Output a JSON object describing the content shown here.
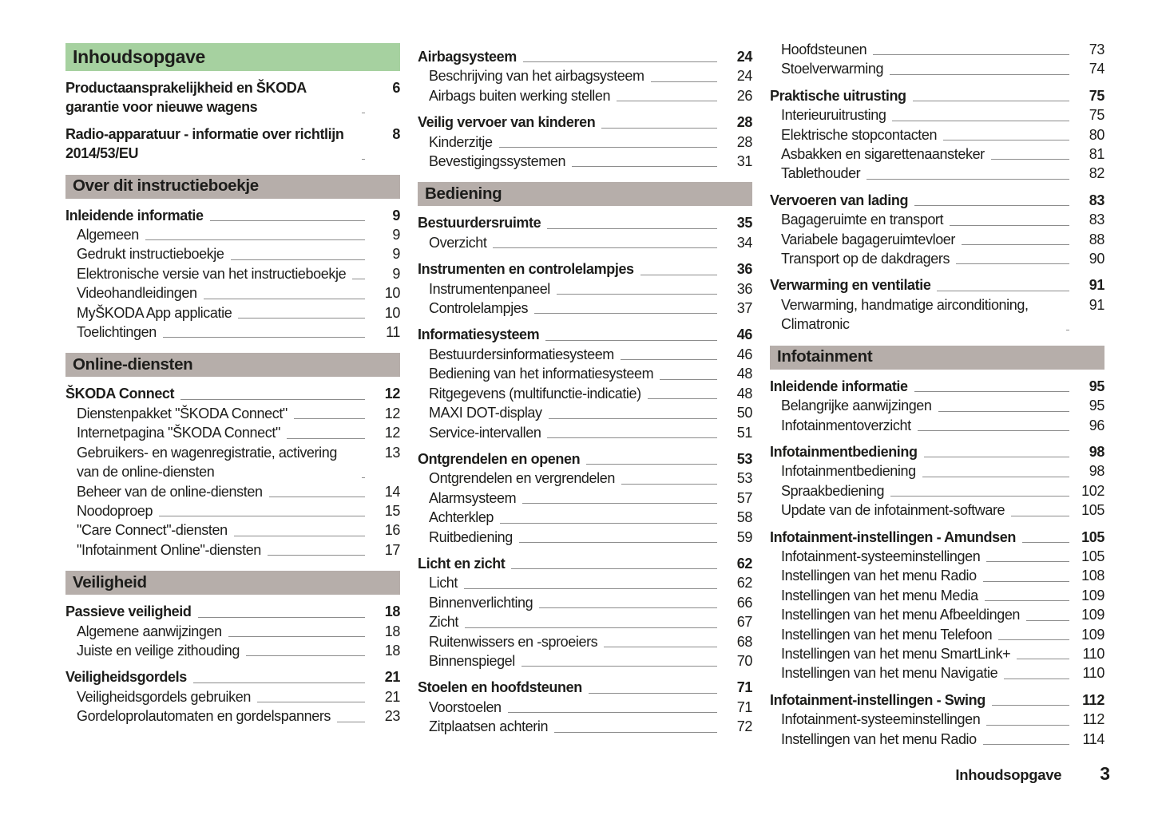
{
  "title": "Inhoudsopgave",
  "footer": {
    "label": "Inhoudsopgave",
    "page_number": "3"
  },
  "colors": {
    "banner_green": "#a6d1a0",
    "section_bar_gray": "#b6aeaa",
    "text": "#1d1d1b",
    "leader_line": "#8c8c8c"
  },
  "columns": [
    {
      "blocks": [
        {
          "type": "banner",
          "text": "Inhoudsopgave"
        },
        {
          "type": "entry",
          "level": 1,
          "text": "Productaansprakelijkheid en ŠKODA garantie voor nieuwe wagens",
          "page": "6"
        },
        {
          "type": "entry",
          "level": 1,
          "text": "Radio-apparatuur - informatie over richtlijn 2014/53/EU",
          "page": "8"
        },
        {
          "type": "section",
          "text": "Over dit instructieboekje"
        },
        {
          "type": "entry",
          "level": 1,
          "text": "Inleidende informatie",
          "page": "9"
        },
        {
          "type": "entry",
          "level": 2,
          "text": "Algemeen",
          "page": "9"
        },
        {
          "type": "entry",
          "level": 2,
          "text": "Gedrukt instructieboekje",
          "page": "9"
        },
        {
          "type": "entry",
          "level": 2,
          "text": "Elektronische versie van het instructieboekje",
          "page": "9"
        },
        {
          "type": "entry",
          "level": 2,
          "text": "Videohandleidingen",
          "page": "10"
        },
        {
          "type": "entry",
          "level": 2,
          "text": "MyŠKODA App applicatie",
          "page": "10"
        },
        {
          "type": "entry",
          "level": 2,
          "text": "Toelichtingen",
          "page": "11"
        },
        {
          "type": "section",
          "text": "Online-diensten"
        },
        {
          "type": "entry",
          "level": 1,
          "text": "ŠKODA Connect",
          "page": "12"
        },
        {
          "type": "entry",
          "level": 2,
          "text": "Dienstenpakket \"ŠKODA Connect\"",
          "page": "12"
        },
        {
          "type": "entry",
          "level": 2,
          "text": "Internetpagina \"ŠKODA Connect\"",
          "page": "12"
        },
        {
          "type": "entry",
          "level": 2,
          "text": "Gebruikers- en wagenregistratie, activering van de online-diensten",
          "page": "13"
        },
        {
          "type": "entry",
          "level": 2,
          "text": "Beheer van de online-diensten",
          "page": "14"
        },
        {
          "type": "entry",
          "level": 2,
          "text": "Noodoproep",
          "page": "15"
        },
        {
          "type": "entry",
          "level": 2,
          "text": "\"Care Connect\"-diensten",
          "page": "16"
        },
        {
          "type": "entry",
          "level": 2,
          "text": "\"Infotainment Online\"-diensten",
          "page": "17"
        },
        {
          "type": "section",
          "text": "Veiligheid"
        },
        {
          "type": "entry",
          "level": 1,
          "text": "Passieve veiligheid",
          "page": "18"
        },
        {
          "type": "entry",
          "level": 2,
          "text": "Algemene aanwijzingen",
          "page": "18"
        },
        {
          "type": "entry",
          "level": 2,
          "text": "Juiste en veilige zithouding",
          "page": "18"
        },
        {
          "type": "entry",
          "level": 1,
          "text": "Veiligheidsgordels",
          "page": "21"
        },
        {
          "type": "entry",
          "level": 2,
          "text": "Veiligheidsgordels gebruiken",
          "page": "21"
        },
        {
          "type": "entry",
          "level": 2,
          "text": "Gordeloprolautomaten en gordelspanners",
          "page": "23"
        }
      ]
    },
    {
      "blocks": [
        {
          "type": "entry",
          "level": 1,
          "text": "Airbagsysteem",
          "page": "24"
        },
        {
          "type": "entry",
          "level": 2,
          "text": "Beschrijving van het airbagsysteem",
          "page": "24"
        },
        {
          "type": "entry",
          "level": 2,
          "text": "Airbags buiten werking stellen",
          "page": "26"
        },
        {
          "type": "entry",
          "level": 1,
          "text": "Veilig vervoer van kinderen",
          "page": "28"
        },
        {
          "type": "entry",
          "level": 2,
          "text": "Kinderzitje",
          "page": "28"
        },
        {
          "type": "entry",
          "level": 2,
          "text": "Bevestigingssystemen",
          "page": "31"
        },
        {
          "type": "section",
          "text": "Bediening"
        },
        {
          "type": "entry",
          "level": 1,
          "text": "Bestuurdersruimte",
          "page": "35"
        },
        {
          "type": "entry",
          "level": 2,
          "text": "Overzicht",
          "page": "34"
        },
        {
          "type": "entry",
          "level": 1,
          "text": "Instrumenten en controlelampjes",
          "page": "36"
        },
        {
          "type": "entry",
          "level": 2,
          "text": "Instrumentenpaneel",
          "page": "36"
        },
        {
          "type": "entry",
          "level": 2,
          "text": "Controlelampjes",
          "page": "37"
        },
        {
          "type": "entry",
          "level": 1,
          "text": "Informatiesysteem",
          "page": "46"
        },
        {
          "type": "entry",
          "level": 2,
          "text": "Bestuurdersinformatiesysteem",
          "page": "46"
        },
        {
          "type": "entry",
          "level": 2,
          "text": "Bediening van het informatiesysteem",
          "page": "48"
        },
        {
          "type": "entry",
          "level": 2,
          "text": "Ritgegevens (multifunctie-indicatie)",
          "page": "48"
        },
        {
          "type": "entry",
          "level": 2,
          "text": "MAXI DOT-display",
          "page": "50"
        },
        {
          "type": "entry",
          "level": 2,
          "text": "Service-intervallen",
          "page": "51"
        },
        {
          "type": "entry",
          "level": 1,
          "text": "Ontgrendelen en openen",
          "page": "53"
        },
        {
          "type": "entry",
          "level": 2,
          "text": "Ontgrendelen en vergrendelen",
          "page": "53"
        },
        {
          "type": "entry",
          "level": 2,
          "text": "Alarmsysteem",
          "page": "57"
        },
        {
          "type": "entry",
          "level": 2,
          "text": "Achterklep",
          "page": "58"
        },
        {
          "type": "entry",
          "level": 2,
          "text": "Ruitbediening",
          "page": "59"
        },
        {
          "type": "entry",
          "level": 1,
          "text": "Licht en zicht",
          "page": "62"
        },
        {
          "type": "entry",
          "level": 2,
          "text": "Licht",
          "page": "62"
        },
        {
          "type": "entry",
          "level": 2,
          "text": "Binnenverlichting",
          "page": "66"
        },
        {
          "type": "entry",
          "level": 2,
          "text": "Zicht",
          "page": "67"
        },
        {
          "type": "entry",
          "level": 2,
          "text": "Ruitenwissers en -sproeiers",
          "page": "68"
        },
        {
          "type": "entry",
          "level": 2,
          "text": "Binnenspiegel",
          "page": "70"
        },
        {
          "type": "entry",
          "level": 1,
          "text": "Stoelen en hoofdsteunen",
          "page": "71"
        },
        {
          "type": "entry",
          "level": 2,
          "text": "Voorstoelen",
          "page": "71"
        },
        {
          "type": "entry",
          "level": 2,
          "text": "Zitplaatsen achterin",
          "page": "72"
        }
      ]
    },
    {
      "blocks": [
        {
          "type": "entry",
          "level": 2,
          "text": "Hoofdsteunen",
          "page": "73"
        },
        {
          "type": "entry",
          "level": 2,
          "text": "Stoelverwarming",
          "page": "74"
        },
        {
          "type": "entry",
          "level": 1,
          "text": "Praktische uitrusting",
          "page": "75"
        },
        {
          "type": "entry",
          "level": 2,
          "text": "Interieuruitrusting",
          "page": "75"
        },
        {
          "type": "entry",
          "level": 2,
          "text": "Elektrische stopcontacten",
          "page": "80"
        },
        {
          "type": "entry",
          "level": 2,
          "text": "Asbakken en sigarettenaansteker",
          "page": "81"
        },
        {
          "type": "entry",
          "level": 2,
          "text": "Tablethouder",
          "page": "82"
        },
        {
          "type": "entry",
          "level": 1,
          "text": "Vervoeren van lading",
          "page": "83"
        },
        {
          "type": "entry",
          "level": 2,
          "text": "Bagageruimte en transport",
          "page": "83"
        },
        {
          "type": "entry",
          "level": 2,
          "text": "Variabele bagageruimtevloer",
          "page": "88"
        },
        {
          "type": "entry",
          "level": 2,
          "text": "Transport op de dakdragers",
          "page": "90"
        },
        {
          "type": "entry",
          "level": 1,
          "text": "Verwarming en ventilatie",
          "page": "91"
        },
        {
          "type": "entry",
          "level": 2,
          "text": "Verwarming, handmatige airconditioning, Climatronic",
          "page": "91"
        },
        {
          "type": "section",
          "text": "Infotainment"
        },
        {
          "type": "entry",
          "level": 1,
          "text": "Inleidende informatie",
          "page": "95"
        },
        {
          "type": "entry",
          "level": 2,
          "text": "Belangrijke aanwijzingen",
          "page": "95"
        },
        {
          "type": "entry",
          "level": 2,
          "text": "Infotainmentoverzicht",
          "page": "96"
        },
        {
          "type": "entry",
          "level": 1,
          "text": "Infotainmentbediening",
          "page": "98"
        },
        {
          "type": "entry",
          "level": 2,
          "text": "Infotainmentbediening",
          "page": "98"
        },
        {
          "type": "entry",
          "level": 2,
          "text": "Spraakbediening",
          "page": "102"
        },
        {
          "type": "entry",
          "level": 2,
          "text": "Update van de infotainment-software",
          "page": "105"
        },
        {
          "type": "entry",
          "level": 1,
          "text": "Infotainment-instellingen - Amundsen",
          "page": "105"
        },
        {
          "type": "entry",
          "level": 2,
          "text": "Infotainment-systeeminstellingen",
          "page": "105"
        },
        {
          "type": "entry",
          "level": 2,
          "text": "Instellingen van het menu Radio",
          "page": "108"
        },
        {
          "type": "entry",
          "level": 2,
          "text": "Instellingen van het menu Media",
          "page": "109"
        },
        {
          "type": "entry",
          "level": 2,
          "text": "Instellingen van het menu Afbeeldingen",
          "page": "109"
        },
        {
          "type": "entry",
          "level": 2,
          "text": "Instellingen van het menu Telefoon",
          "page": "109"
        },
        {
          "type": "entry",
          "level": 2,
          "text": "Instellingen van het menu SmartLink+",
          "page": "110"
        },
        {
          "type": "entry",
          "level": 2,
          "text": "Instellingen van het menu Navigatie",
          "page": "110"
        },
        {
          "type": "entry",
          "level": 1,
          "text": "Infotainment-instellingen - Swing",
          "page": "112"
        },
        {
          "type": "entry",
          "level": 2,
          "text": "Infotainment-systeeminstellingen",
          "page": "112"
        },
        {
          "type": "entry",
          "level": 2,
          "text": "Instellingen van het menu Radio",
          "page": "114"
        }
      ]
    }
  ]
}
